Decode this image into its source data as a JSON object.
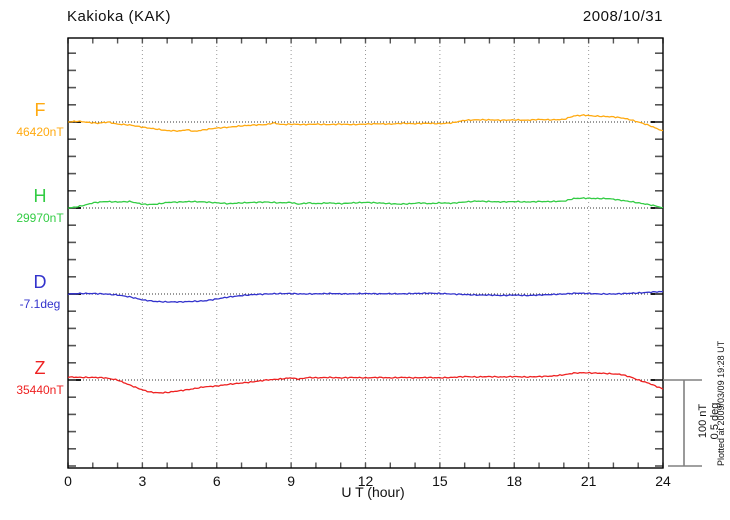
{
  "header": {
    "title": "Kakioka (KAK)",
    "date": "2008/10/31"
  },
  "x_axis": {
    "label": "U T (hour)",
    "ticks": [
      "0",
      "3",
      "6",
      "9",
      "12",
      "15",
      "18",
      "21",
      "24"
    ],
    "min": 0,
    "max": 24,
    "minor_step_hours": 1,
    "grid_step_hours": 3
  },
  "channels": [
    {
      "letter": "F",
      "value": "46420nT",
      "color": "#FFAA11"
    },
    {
      "letter": "H",
      "value": "29970nT",
      "color": "#33CC44"
    },
    {
      "letter": "D",
      "value": "-7.1deg",
      "color": "#3333CC"
    },
    {
      "letter": "Z",
      "value": "35440nT",
      "color": "#EE2222"
    }
  ],
  "scale_bar": {
    "line1": "100 nT",
    "line2": "0.5 deg"
  },
  "footer": {
    "plotted_at": "Plotted at 2009/03/09 19:28 UT"
  },
  "colors": {
    "grid": "#999999",
    "baseline": "#333333",
    "axis": "#000000",
    "tick": "#555555",
    "scalebar": "#808080",
    "text": "#111111"
  },
  "chart_data": {
    "type": "line",
    "title": "Kakioka (KAK)",
    "subtitle": "2008/10/31",
    "xlabel": "U T (hour)",
    "x_range": [
      0,
      24
    ],
    "x_tick_interval": 3,
    "grid": true,
    "y_scale": {
      "per_tick_nT": 20,
      "bar_nT": 100,
      "bar_deg": 0.5
    },
    "series": [
      {
        "name": "F",
        "base_value": 46420,
        "unit": "nT",
        "color": "#FFAA11",
        "offsets": [
          [
            0,
            0
          ],
          [
            0.4,
            1
          ],
          [
            0.8,
            -0.5
          ],
          [
            1.2,
            -1.5
          ],
          [
            1.6,
            0
          ],
          [
            2,
            -2.5
          ],
          [
            2.5,
            -3.5
          ],
          [
            3,
            -6
          ],
          [
            3.5,
            -8
          ],
          [
            4,
            -10
          ],
          [
            4.5,
            -10.5
          ],
          [
            4.8,
            -9
          ],
          [
            5.1,
            -11
          ],
          [
            5.5,
            -9
          ],
          [
            6,
            -7
          ],
          [
            6.5,
            -6
          ],
          [
            7,
            -4.5
          ],
          [
            7.5,
            -3.5
          ],
          [
            8,
            -3
          ],
          [
            8.3,
            -1
          ],
          [
            8.6,
            -3
          ],
          [
            9,
            -2.5
          ],
          [
            9.5,
            -3
          ],
          [
            10,
            -2.5
          ],
          [
            10.5,
            -3
          ],
          [
            11,
            -2.5
          ],
          [
            11.5,
            -3
          ],
          [
            12,
            -2.5
          ],
          [
            12.5,
            -2
          ],
          [
            13,
            -2.5
          ],
          [
            13.5,
            -1.5
          ],
          [
            14,
            -2
          ],
          [
            14.5,
            -1.5
          ],
          [
            15,
            -2
          ],
          [
            15.5,
            -1
          ],
          [
            16,
            2
          ],
          [
            16.5,
            2.5
          ],
          [
            17,
            2.5
          ],
          [
            17.5,
            2
          ],
          [
            18,
            2.5
          ],
          [
            18.5,
            2
          ],
          [
            19,
            3
          ],
          [
            19.5,
            2.5
          ],
          [
            20,
            3
          ],
          [
            20.4,
            7
          ],
          [
            20.8,
            8
          ],
          [
            21.2,
            7
          ],
          [
            21.6,
            6.5
          ],
          [
            22,
            6
          ],
          [
            22.4,
            4.5
          ],
          [
            22.7,
            2.5
          ],
          [
            23,
            0
          ],
          [
            23.4,
            -3.5
          ],
          [
            23.7,
            -7
          ],
          [
            24,
            -10.5
          ]
        ]
      },
      {
        "name": "H",
        "base_value": 29970,
        "unit": "nT",
        "color": "#33CC44",
        "offsets": [
          [
            0,
            0
          ],
          [
            0.3,
            1
          ],
          [
            0.7,
            3.5
          ],
          [
            1,
            6
          ],
          [
            1.5,
            7.5
          ],
          [
            2,
            7
          ],
          [
            2.5,
            7.5
          ],
          [
            3,
            4.5
          ],
          [
            3.3,
            4
          ],
          [
            3.6,
            4.5
          ],
          [
            4,
            6.5
          ],
          [
            4.5,
            7
          ],
          [
            5,
            7.5
          ],
          [
            5.5,
            7
          ],
          [
            6,
            6
          ],
          [
            6.5,
            5
          ],
          [
            7,
            6
          ],
          [
            7.5,
            6.5
          ],
          [
            8,
            7
          ],
          [
            8.5,
            6
          ],
          [
            9,
            6.5
          ],
          [
            9.3,
            4.5
          ],
          [
            9.7,
            6
          ],
          [
            10,
            5
          ],
          [
            10.5,
            6
          ],
          [
            11,
            5
          ],
          [
            11.5,
            6
          ],
          [
            12,
            6.5
          ],
          [
            12.5,
            6
          ],
          [
            13,
            5
          ],
          [
            13.4,
            4.5
          ],
          [
            13.8,
            5
          ],
          [
            14.2,
            6
          ],
          [
            14.6,
            5
          ],
          [
            15,
            6
          ],
          [
            15.5,
            5.5
          ],
          [
            16,
            7
          ],
          [
            16.5,
            8
          ],
          [
            17,
            7.5
          ],
          [
            17.5,
            7
          ],
          [
            18,
            7.5
          ],
          [
            18.5,
            7
          ],
          [
            19,
            7.5
          ],
          [
            19.5,
            7.5
          ],
          [
            20,
            8
          ],
          [
            20.4,
            11
          ],
          [
            20.8,
            11.5
          ],
          [
            21.3,
            11
          ],
          [
            21.8,
            11
          ],
          [
            22.3,
            9
          ],
          [
            22.8,
            7
          ],
          [
            23.3,
            4.5
          ],
          [
            23.7,
            2.5
          ],
          [
            24,
            0
          ]
        ]
      },
      {
        "name": "D",
        "base_value": -7.1,
        "unit": "deg",
        "color": "#3333CC",
        "offsets": [
          [
            0,
            0
          ],
          [
            0.5,
            0.003
          ],
          [
            1,
            0.003
          ],
          [
            1.5,
            0
          ],
          [
            2,
            -0.006
          ],
          [
            2.5,
            -0.017
          ],
          [
            3,
            -0.034
          ],
          [
            3.5,
            -0.043
          ],
          [
            4,
            -0.046
          ],
          [
            4.5,
            -0.046
          ],
          [
            5,
            -0.043
          ],
          [
            5.5,
            -0.04
          ],
          [
            6,
            -0.029
          ],
          [
            6.5,
            -0.017
          ],
          [
            7,
            -0.009
          ],
          [
            7.5,
            -0.003
          ],
          [
            8,
            0
          ],
          [
            8.5,
            0.002
          ],
          [
            9,
            0.003
          ],
          [
            9.5,
            0
          ],
          [
            10,
            0.001
          ],
          [
            10.5,
            0.003
          ],
          [
            11,
            0.001
          ],
          [
            11.5,
            0.001
          ],
          [
            12,
            0.003
          ],
          [
            12.5,
            0.001
          ],
          [
            13,
            0.002
          ],
          [
            13.5,
            0.001
          ],
          [
            14,
            0.003
          ],
          [
            14.5,
            0.005
          ],
          [
            15,
            0.003
          ],
          [
            15.5,
            0
          ],
          [
            16,
            -0.003
          ],
          [
            16.5,
            -0.006
          ],
          [
            17,
            -0.006
          ],
          [
            17.5,
            -0.009
          ],
          [
            18,
            -0.006
          ],
          [
            18.5,
            -0.009
          ],
          [
            19,
            -0.006
          ],
          [
            19.5,
            -0.003
          ],
          [
            20,
            0
          ],
          [
            20.5,
            0.005
          ],
          [
            21,
            0.003
          ],
          [
            21.5,
            0
          ],
          [
            22,
            0
          ],
          [
            22.5,
            0.003
          ],
          [
            23,
            0.006
          ],
          [
            23.5,
            0.011
          ],
          [
            24,
            0.014
          ]
        ]
      },
      {
        "name": "Z",
        "base_value": 35440,
        "unit": "nT",
        "color": "#EE2222",
        "offsets": [
          [
            0,
            3.5
          ],
          [
            0.5,
            3
          ],
          [
            1,
            3
          ],
          [
            1.5,
            2.5
          ],
          [
            2,
            0
          ],
          [
            2.5,
            -6
          ],
          [
            3,
            -11.5
          ],
          [
            3.3,
            -14
          ],
          [
            3.7,
            -15
          ],
          [
            4,
            -14.5
          ],
          [
            4.5,
            -12.5
          ],
          [
            5,
            -10.5
          ],
          [
            5.5,
            -8
          ],
          [
            6,
            -7
          ],
          [
            6.5,
            -5
          ],
          [
            7,
            -3.5
          ],
          [
            7.5,
            -2
          ],
          [
            8,
            0
          ],
          [
            8.5,
            1
          ],
          [
            9,
            2.5
          ],
          [
            9.3,
            1
          ],
          [
            9.7,
            3
          ],
          [
            10,
            2.5
          ],
          [
            10.5,
            3
          ],
          [
            11,
            2.5
          ],
          [
            11.5,
            3
          ],
          [
            12,
            2.5
          ],
          [
            12.5,
            3
          ],
          [
            13,
            2.5
          ],
          [
            13.5,
            3
          ],
          [
            14,
            2.5
          ],
          [
            14.5,
            3
          ],
          [
            15,
            2.5
          ],
          [
            15.5,
            3
          ],
          [
            16,
            4
          ],
          [
            16.5,
            3.5
          ],
          [
            17,
            4
          ],
          [
            17.5,
            3.5
          ],
          [
            18,
            4
          ],
          [
            18.5,
            3.5
          ],
          [
            19,
            4
          ],
          [
            19.5,
            4.5
          ],
          [
            20,
            6
          ],
          [
            20.4,
            8
          ],
          [
            20.8,
            8.5
          ],
          [
            21.3,
            8
          ],
          [
            21.8,
            7.5
          ],
          [
            22.3,
            6.5
          ],
          [
            22.7,
            3.5
          ],
          [
            23,
            0
          ],
          [
            23.4,
            -3.5
          ],
          [
            23.7,
            -7
          ],
          [
            24,
            -10.5
          ]
        ]
      }
    ]
  }
}
